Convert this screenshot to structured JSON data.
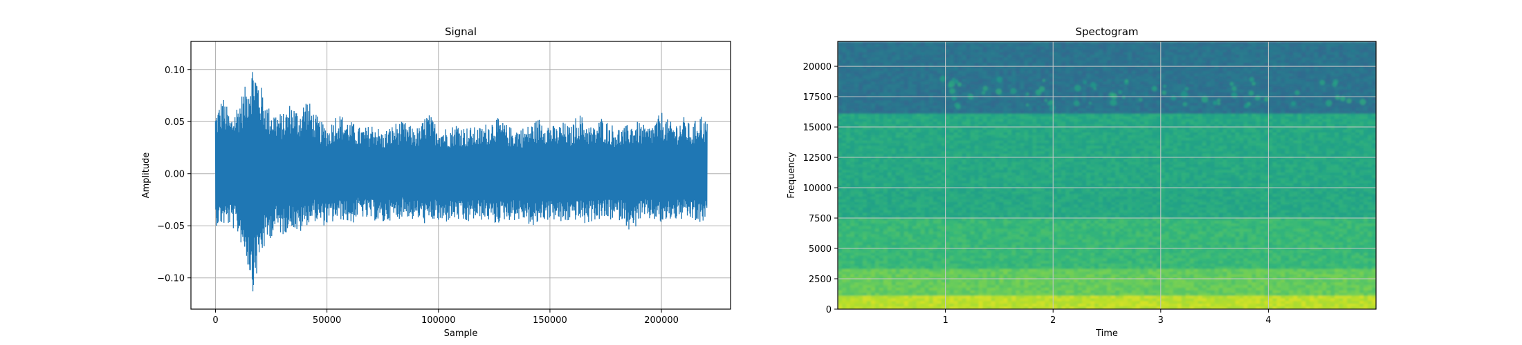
{
  "chart_data": [
    {
      "type": "line",
      "title": "Signal",
      "xlabel": "Sample",
      "ylabel": "Amplitude",
      "xlim": [
        -11000,
        231000
      ],
      "ylim": [
        -0.13,
        0.127
      ],
      "grid": true,
      "xticks": [
        0,
        50000,
        100000,
        150000,
        200000
      ],
      "xtick_labels": [
        "0",
        "50000",
        "100000",
        "150000",
        "200000"
      ],
      "yticks": [
        0.1,
        0.05,
        0.0,
        -0.05,
        -0.1
      ],
      "ytick_labels": [
        "0.10",
        "0.05",
        "0.00",
        "−0.05",
        "−0.10"
      ],
      "series": [
        {
          "name": "signal",
          "color": "#1f77b4",
          "x_range": [
            0,
            220500
          ],
          "upper_envelope": [
            0.06,
            0.075,
            0.055,
            0.07,
            0.085,
            0.11,
            0.085,
            0.065,
            0.06,
            0.058,
            0.07,
            0.06,
            0.075,
            0.06,
            0.05,
            0.045,
            0.06,
            0.055,
            0.05,
            0.045,
            0.045,
            0.05,
            0.04,
            0.045,
            0.05,
            0.05,
            0.045,
            0.045,
            0.06,
            0.05,
            0.045,
            0.045,
            0.05,
            0.045,
            0.045,
            0.045,
            0.05,
            0.055,
            0.05,
            0.045,
            0.045,
            0.045,
            0.05,
            0.055,
            0.05,
            0.045,
            0.05,
            0.045,
            0.06,
            0.05,
            0.045,
            0.055,
            0.05,
            0.045,
            0.045,
            0.05,
            0.05,
            0.045,
            0.05,
            0.06,
            0.05,
            0.05,
            0.055,
            0.045,
            0.06,
            0.05
          ],
          "lower_envelope": [
            -0.05,
            -0.05,
            -0.05,
            -0.06,
            -0.08,
            -0.115,
            -0.08,
            -0.065,
            -0.055,
            -0.06,
            -0.05,
            -0.06,
            -0.05,
            -0.045,
            -0.05,
            -0.05,
            -0.045,
            -0.045,
            -0.05,
            -0.04,
            -0.045,
            -0.045,
            -0.05,
            -0.045,
            -0.045,
            -0.04,
            -0.045,
            -0.045,
            -0.05,
            -0.045,
            -0.05,
            -0.045,
            -0.045,
            -0.05,
            -0.045,
            -0.045,
            -0.045,
            -0.05,
            -0.045,
            -0.045,
            -0.045,
            -0.045,
            -0.055,
            -0.045,
            -0.045,
            -0.045,
            -0.05,
            -0.045,
            -0.045,
            -0.05,
            -0.045,
            -0.045,
            -0.045,
            -0.045,
            -0.045,
            -0.06,
            -0.045,
            -0.045,
            -0.045,
            -0.05,
            -0.045,
            -0.045,
            -0.045,
            -0.045,
            -0.05,
            -0.045
          ]
        }
      ]
    },
    {
      "type": "heatmap",
      "title": "Spectogram",
      "xlabel": "Time",
      "ylabel": "Frequency",
      "xlim": [
        0.0,
        5.0
      ],
      "ylim": [
        0,
        22050
      ],
      "grid": true,
      "xticks": [
        1,
        2,
        3,
        4
      ],
      "xtick_labels": [
        "1",
        "2",
        "3",
        "4"
      ],
      "yticks": [
        0,
        2500,
        5000,
        7500,
        10000,
        12500,
        15000,
        17500,
        20000
      ],
      "ytick_labels": [
        "0",
        "2500",
        "5000",
        "7500",
        "10000",
        "12500",
        "15000",
        "17500",
        "20000"
      ],
      "colormap": "viridis",
      "bands": [
        {
          "freq_from": 0,
          "freq_to": 1200,
          "level": 0.9
        },
        {
          "freq_from": 1200,
          "freq_to": 3200,
          "level": 0.76
        },
        {
          "freq_from": 3200,
          "freq_to": 7500,
          "level": 0.67
        },
        {
          "freq_from": 7500,
          "freq_to": 16000,
          "level": 0.6
        },
        {
          "freq_from": 16000,
          "freq_to": 22050,
          "level": 0.38
        }
      ]
    }
  ]
}
